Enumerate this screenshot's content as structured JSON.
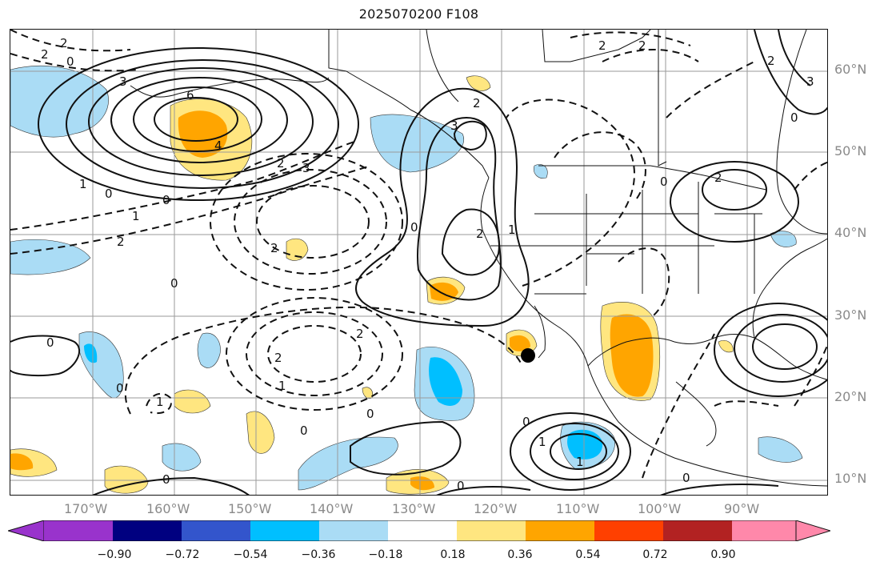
{
  "title": "2025070200 F108",
  "lat_labels": [
    "60°N",
    "50°N",
    "40°N",
    "30°N",
    "20°N",
    "10°N"
  ],
  "lon_labels": [
    "170°W",
    "160°W",
    "150°W",
    "140°W",
    "130°W",
    "120°W",
    "110°W",
    "100°W",
    "90°W"
  ],
  "colorbar": {
    "ticks": [
      "−0.90",
      "−0.72",
      "−0.54",
      "−0.36",
      "−0.18",
      "0.18",
      "0.36",
      "0.54",
      "0.72",
      "0.90"
    ],
    "colors": [
      "#9933cc",
      "#000080",
      "#3355cc",
      "#00bfff",
      "#aadcf5",
      "#ffffff",
      "#ffe680",
      "#ffa500",
      "#ff4000",
      "#b22222",
      "#ff88aa"
    ]
  },
  "contour_labels": [
    "2",
    "2",
    "0",
    "3",
    "6",
    "4",
    "1",
    "0",
    "0",
    "1",
    "2",
    "2",
    "3",
    "2",
    "0",
    "3",
    "2",
    "2",
    "0",
    "1",
    "2",
    "2",
    "0",
    "2",
    "2",
    "3",
    "0",
    "0",
    "0",
    "1",
    "2",
    "0",
    "2",
    "1",
    "0",
    "1",
    "1",
    "0",
    "0",
    "0",
    "0"
  ],
  "marker": "storm-position-marker"
}
